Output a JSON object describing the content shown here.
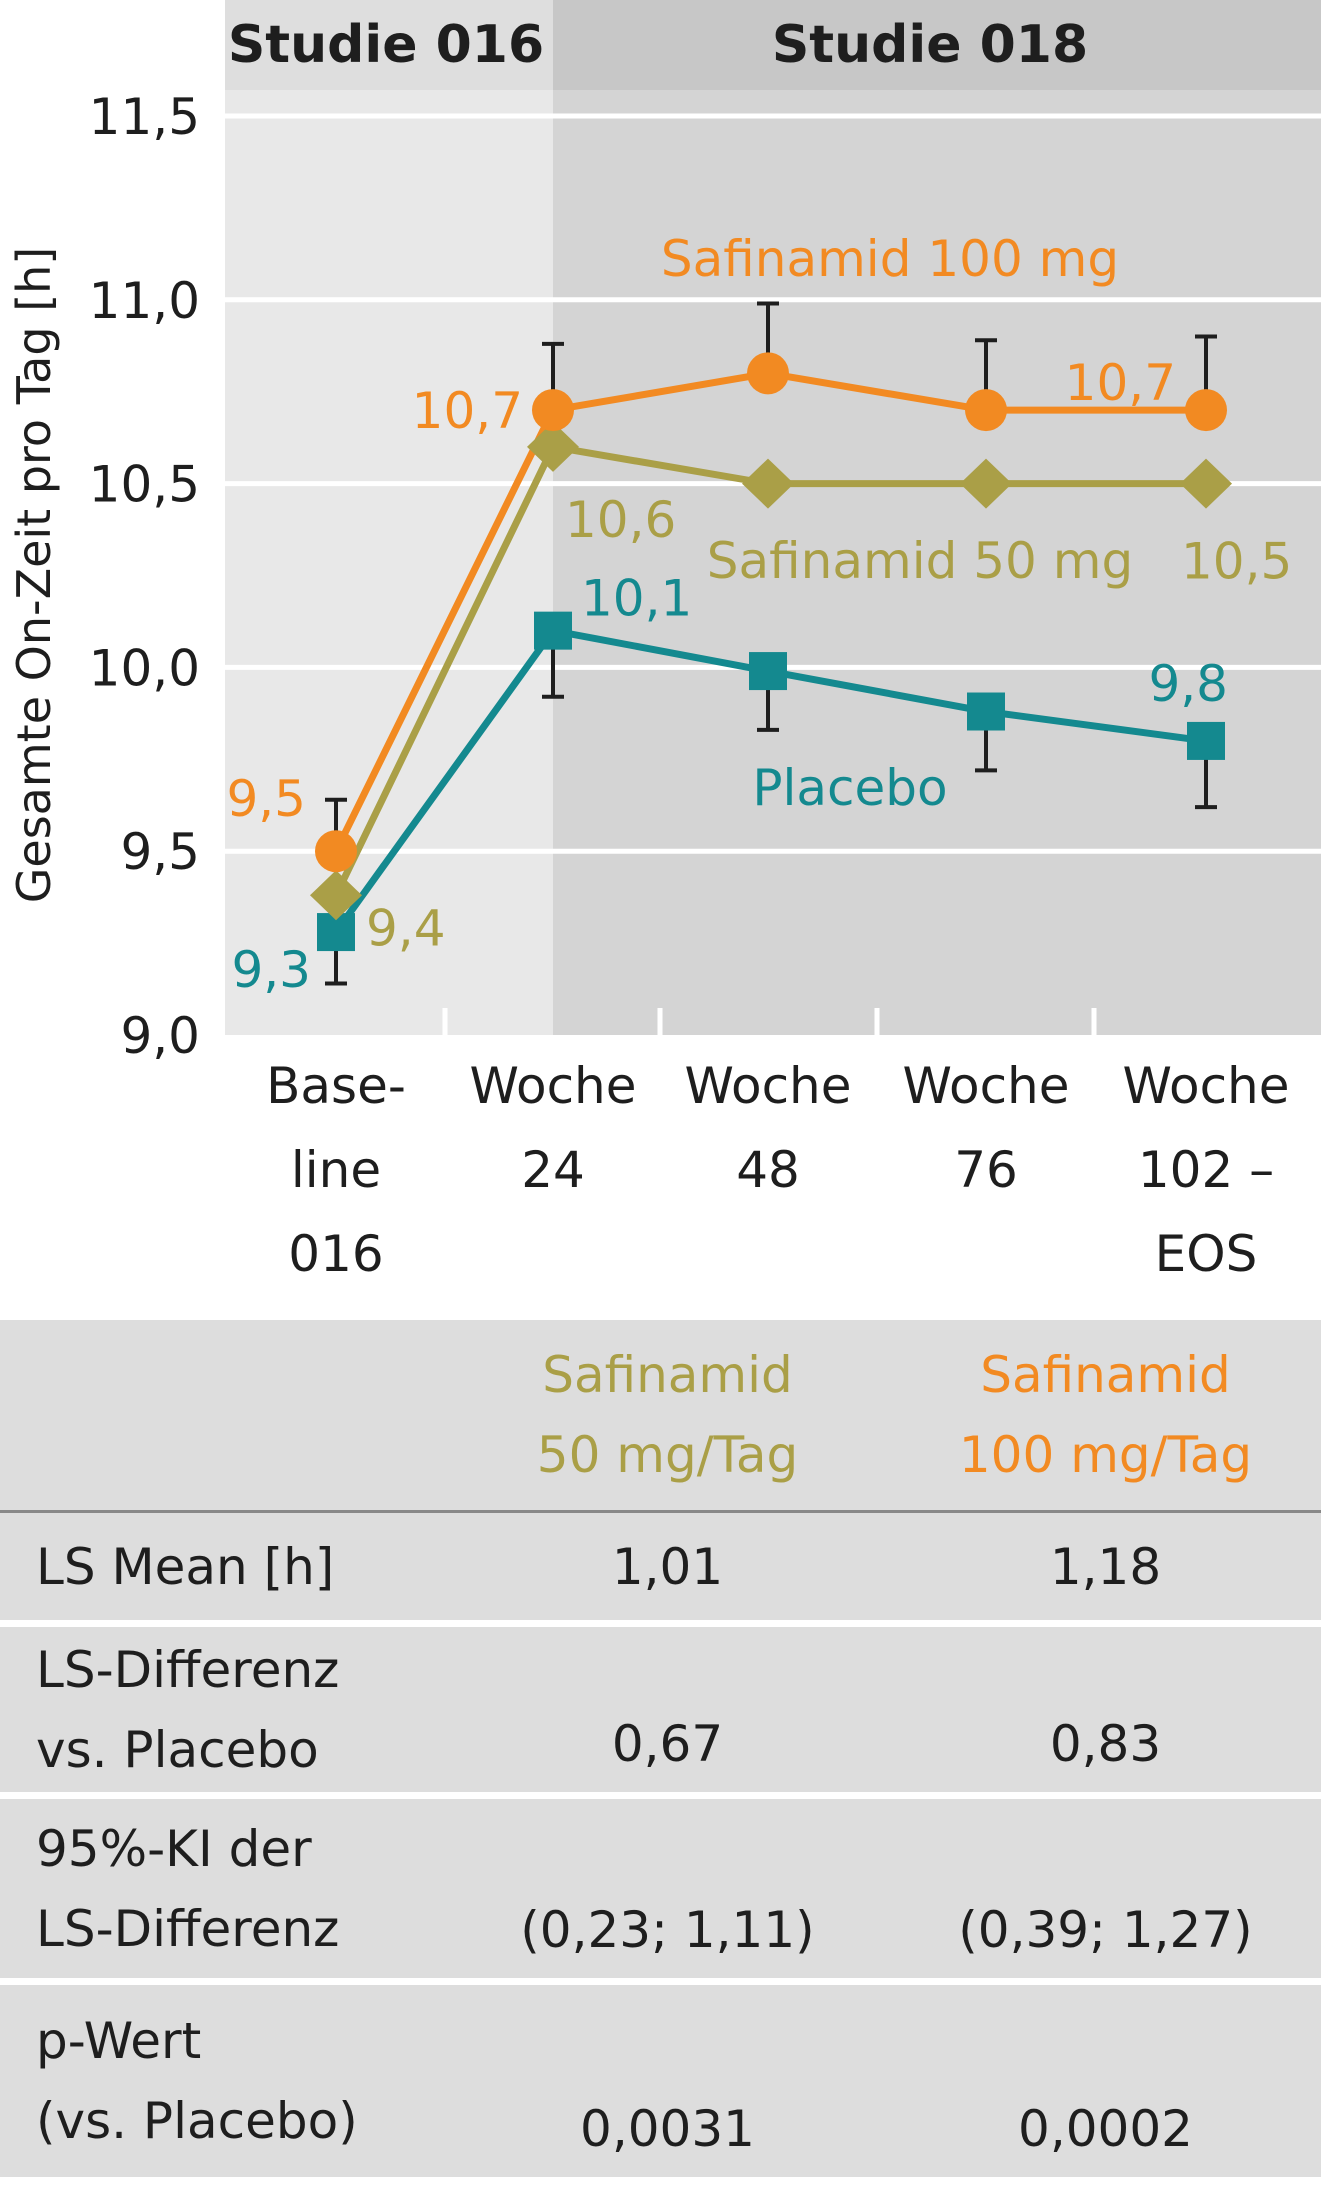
{
  "chart_data": {
    "type": "line",
    "header": {
      "left": "Studie 016",
      "right": "Studie 018"
    },
    "ylabel": "Gesamte On-Zeit pro Tag [h]",
    "ylim": [
      9.0,
      11.5
    ],
    "yticks": [
      "9,0",
      "9,5",
      "10,0",
      "10,5",
      "11,0",
      "11,5"
    ],
    "ytick_values": [
      9.0,
      9.5,
      10.0,
      10.5,
      11.0,
      11.5
    ],
    "categories": [
      [
        "Base-",
        "line",
        "016"
      ],
      [
        "Woche",
        "24"
      ],
      [
        "Woche",
        "48"
      ],
      [
        "Woche",
        "76"
      ],
      [
        "Woche",
        "102 –",
        "EOS"
      ]
    ],
    "grid": true,
    "series": [
      {
        "name": "Safinamid 100 mg",
        "color": "#f28a22",
        "marker": "circle",
        "values": [
          9.5,
          10.7,
          10.8,
          10.7,
          10.7
        ],
        "error_upper": [
          9.64,
          10.88,
          10.99,
          10.89,
          10.9
        ],
        "labels": [
          "9,5",
          "10,7",
          "",
          "",
          "10,7"
        ]
      },
      {
        "name": "Safinamid 50 mg",
        "color": "#aa9f47",
        "marker": "diamond",
        "values": [
          9.38,
          10.6,
          10.5,
          10.5,
          10.5
        ],
        "error_upper": [
          null,
          null,
          null,
          null,
          null
        ],
        "labels": [
          "9,4",
          "10,6",
          "",
          "",
          "10,5"
        ]
      },
      {
        "name": "Placebo",
        "color": "#14898f",
        "marker": "square",
        "values": [
          9.28,
          10.1,
          9.99,
          9.88,
          9.8
        ],
        "error_lower": [
          9.14,
          9.92,
          9.83,
          9.72,
          9.62
        ],
        "labels": [
          "9,3",
          "10,1",
          "",
          "",
          "9,8"
        ]
      }
    ]
  },
  "table": {
    "columns": [
      {
        "lines": [
          "Safinamid",
          "50 mg/Tag"
        ],
        "color": "#aa9f47"
      },
      {
        "lines": [
          "Safinamid",
          "100 mg/Tag"
        ],
        "color": "#f28a22"
      }
    ],
    "rows": [
      {
        "label": [
          "LS Mean [h]"
        ],
        "values": [
          "1,01",
          "1,18"
        ]
      },
      {
        "label": [
          "LS-Differenz",
          "vs. Placebo"
        ],
        "values": [
          "0,67",
          "0,83"
        ]
      },
      {
        "label": [
          "95%-KI der",
          "LS-Differenz"
        ],
        "values": [
          "(0,23; 1,11)",
          "(0,39; 1,27)"
        ]
      },
      {
        "label": [
          "p-Wert",
          "(vs. Placebo)"
        ],
        "values": [
          "0,0031",
          "0,0002"
        ]
      }
    ]
  }
}
